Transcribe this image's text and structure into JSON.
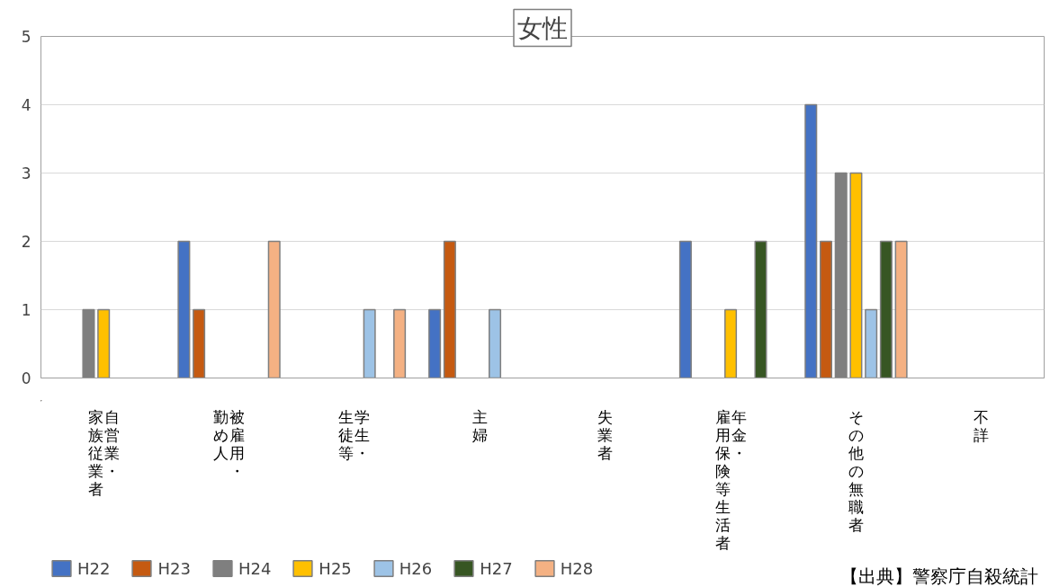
{
  "chart_data": {
    "type": "bar",
    "title": "女性",
    "categories": [
      "自営業・家族従業者",
      "被雇用・勤め人",
      "学生・生徒等",
      "主婦",
      "失業者",
      "年金・雇用保険等生活者",
      "その他の無職者",
      "不詳"
    ],
    "series": [
      {
        "name": "H22",
        "color": "#4472c4",
        "values": [
          null,
          2,
          null,
          1,
          null,
          2,
          4,
          null
        ]
      },
      {
        "name": "H23",
        "color": "#c55a11",
        "values": [
          null,
          1,
          null,
          2,
          null,
          null,
          2,
          null
        ]
      },
      {
        "name": "H24",
        "color": "#7f7f7f",
        "values": [
          1,
          null,
          null,
          null,
          null,
          null,
          3,
          null
        ]
      },
      {
        "name": "H25",
        "color": "#ffc000",
        "values": [
          1,
          null,
          null,
          null,
          null,
          1,
          3,
          null
        ]
      },
      {
        "name": "H26",
        "color": "#9dc3e6",
        "values": [
          null,
          null,
          1,
          1,
          null,
          null,
          1,
          null
        ]
      },
      {
        "name": "H27",
        "color": "#375623",
        "values": [
          null,
          null,
          null,
          null,
          null,
          2,
          2,
          null
        ]
      },
      {
        "name": "H28",
        "color": "#f4b183",
        "values": [
          null,
          2,
          1,
          null,
          null,
          null,
          2,
          null
        ]
      }
    ],
    "ylim": [
      0,
      5
    ],
    "yticks": [
      0,
      1,
      2,
      3,
      4,
      5
    ],
    "grid": "y",
    "legend": "bottom",
    "annotations": [
      "【出典】警察庁自殺統計"
    ]
  }
}
